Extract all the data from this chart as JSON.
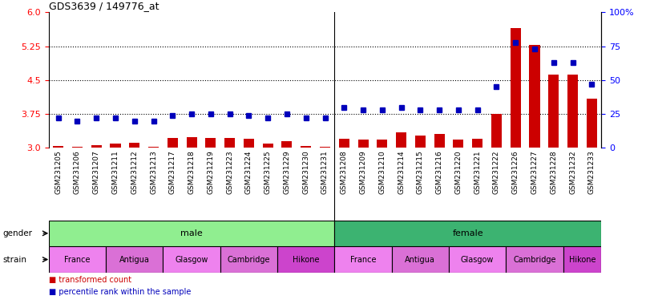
{
  "title": "GDS3639 / 149776_at",
  "samples": [
    "GSM231205",
    "GSM231206",
    "GSM231207",
    "GSM231211",
    "GSM231212",
    "GSM231213",
    "GSM231217",
    "GSM231218",
    "GSM231219",
    "GSM231223",
    "GSM231224",
    "GSM231225",
    "GSM231229",
    "GSM231230",
    "GSM231231",
    "GSM231208",
    "GSM231209",
    "GSM231210",
    "GSM231214",
    "GSM231215",
    "GSM231216",
    "GSM231220",
    "GSM231221",
    "GSM231222",
    "GSM231226",
    "GSM231227",
    "GSM231228",
    "GSM231232",
    "GSM231233"
  ],
  "bar_values": [
    3.05,
    3.02,
    3.06,
    3.1,
    3.12,
    3.03,
    3.22,
    3.24,
    3.22,
    3.22,
    3.2,
    3.1,
    3.15,
    3.04,
    3.03,
    3.2,
    3.18,
    3.19,
    3.35,
    3.28,
    3.3,
    3.18,
    3.2,
    3.75,
    5.65,
    5.28,
    4.62,
    4.62,
    4.08
  ],
  "dot_values": [
    22,
    20,
    22,
    22,
    20,
    20,
    24,
    25,
    25,
    25,
    24,
    22,
    25,
    22,
    22,
    30,
    28,
    28,
    30,
    28,
    28,
    28,
    28,
    45,
    78,
    73,
    63,
    63,
    47
  ],
  "gender_groups": [
    {
      "label": "male",
      "start": 0,
      "end": 15,
      "color": "#90EE90"
    },
    {
      "label": "female",
      "start": 15,
      "end": 29,
      "color": "#3CB371"
    }
  ],
  "strain_groups": [
    {
      "label": "France",
      "start": 0,
      "end": 3,
      "color": "#EE82EE"
    },
    {
      "label": "Antigua",
      "start": 3,
      "end": 6,
      "color": "#DA70D6"
    },
    {
      "label": "Glasgow",
      "start": 6,
      "end": 9,
      "color": "#EE82EE"
    },
    {
      "label": "Cambridge",
      "start": 9,
      "end": 12,
      "color": "#DA70D6"
    },
    {
      "label": "Hikone",
      "start": 12,
      "end": 15,
      "color": "#CC44CC"
    },
    {
      "label": "France",
      "start": 15,
      "end": 18,
      "color": "#EE82EE"
    },
    {
      "label": "Antigua",
      "start": 18,
      "end": 21,
      "color": "#DA70D6"
    },
    {
      "label": "Glasgow",
      "start": 21,
      "end": 24,
      "color": "#EE82EE"
    },
    {
      "label": "Cambridge",
      "start": 24,
      "end": 27,
      "color": "#DA70D6"
    },
    {
      "label": "Hikone",
      "start": 27,
      "end": 29,
      "color": "#CC44CC"
    }
  ],
  "ylim_left": [
    3.0,
    6.0
  ],
  "ylim_right": [
    0,
    100
  ],
  "yticks_left": [
    3.0,
    3.75,
    4.5,
    5.25,
    6.0
  ],
  "yticks_right": [
    0,
    25,
    50,
    75,
    100
  ],
  "hlines": [
    3.75,
    4.5,
    5.25
  ],
  "bar_color": "#CC0000",
  "dot_color": "#0000BB",
  "bar_base": 3.0,
  "male_female_sep": 14.5,
  "legend": [
    {
      "label": "transformed count",
      "color": "#CC0000"
    },
    {
      "label": "percentile rank within the sample",
      "color": "#0000BB"
    }
  ],
  "gender_label": "gender",
  "strain_label": "strain",
  "xtick_bg": "#D8D8D8"
}
